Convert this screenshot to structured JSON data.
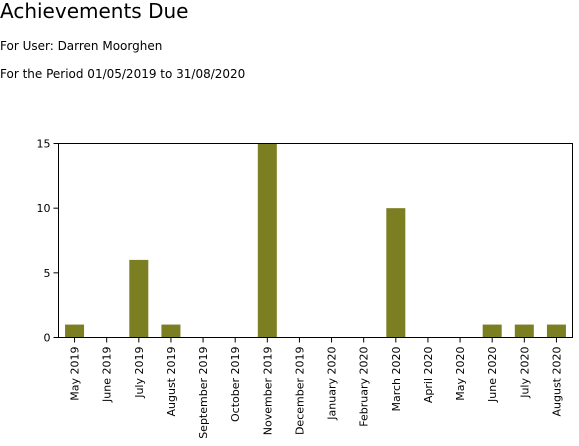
{
  "report": {
    "title": "Achievements Due",
    "user_line": "For User: Darren Moorghen",
    "period_line": "For the Period 01/05/2019 to 31/08/2020"
  },
  "chart_data": {
    "type": "bar",
    "title": "",
    "xlabel": "",
    "ylabel": "",
    "categories": [
      "May 2019",
      "June 2019",
      "July 2019",
      "August 2019",
      "September 2019",
      "October 2019",
      "November 2019",
      "December 2019",
      "January 2020",
      "February 2020",
      "March 2020",
      "April 2020",
      "May 2020",
      "June 2020",
      "July 2020",
      "August 2020"
    ],
    "values": [
      1,
      0,
      6,
      1,
      0,
      0,
      15,
      0,
      0,
      0,
      10,
      0,
      0,
      1,
      1,
      1
    ],
    "ylim": [
      0,
      15
    ],
    "yticks": [
      0,
      5,
      10,
      15
    ],
    "bar_color": "#7b7f21",
    "grid": false,
    "legend": "none"
  }
}
